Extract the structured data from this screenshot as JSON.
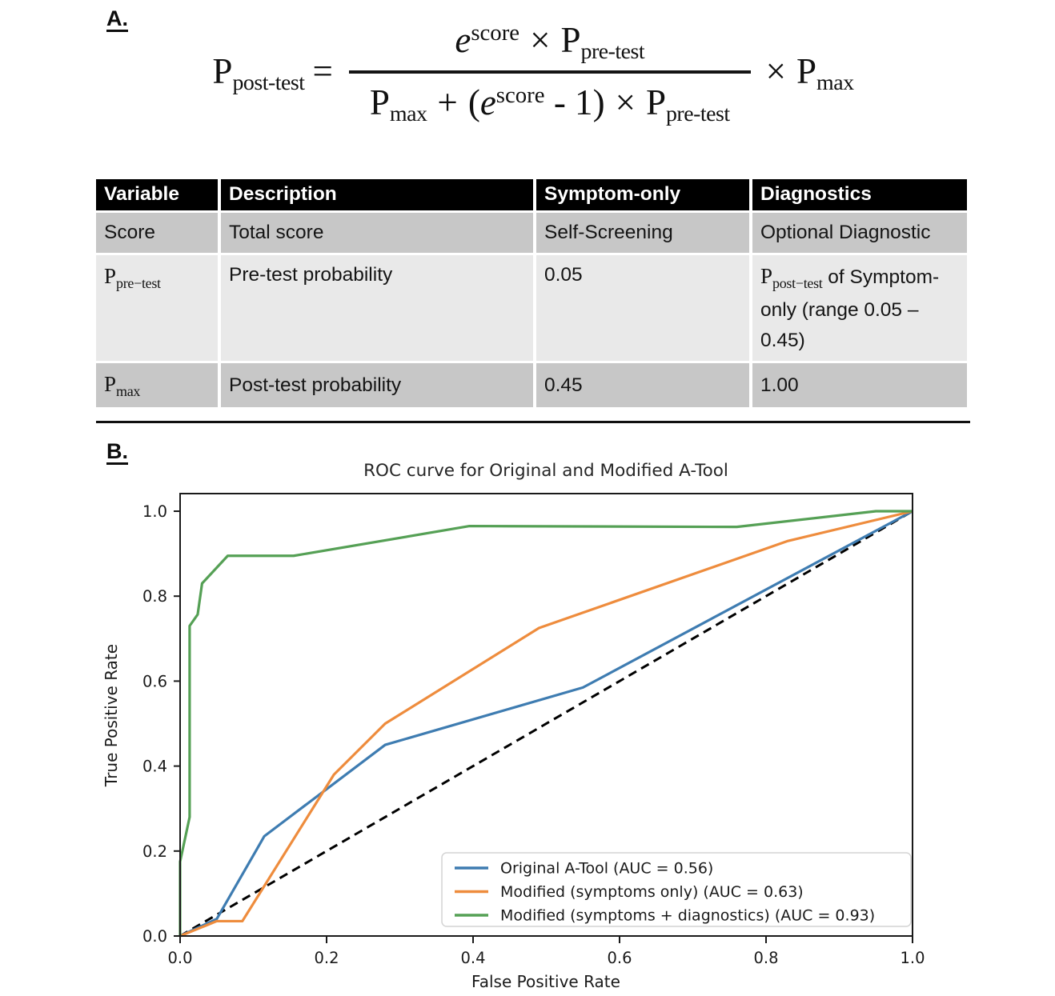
{
  "panel_a": {
    "label": "A.",
    "formula": {
      "lhs": {
        "base": "P",
        "sub": "post-test"
      },
      "equals": "=",
      "numerator": {
        "e": "e",
        "exp": "score",
        "times": "×",
        "p": "P",
        "p_sub": "pre-test"
      },
      "denominator": {
        "p1": "P",
        "p1_sub": "max",
        "plus": "+",
        "open": "(",
        "e": "e",
        "exp": "score",
        "minus_one": "- 1",
        "close": ")",
        "times": "×",
        "p2": "P",
        "p2_sub": "pre-test"
      },
      "rhs": {
        "times": "×",
        "p": "P",
        "p_sub": "max"
      }
    },
    "table": {
      "headers": [
        "Variable",
        "Description",
        "Symptom-only",
        "Diagnostics"
      ],
      "rows": [
        {
          "shade": "dark",
          "cells": [
            [
              {
                "t": "text",
                "v": "Score"
              }
            ],
            [
              {
                "t": "text",
                "v": "Total score"
              }
            ],
            [
              {
                "t": "text",
                "v": "Self-Screening"
              }
            ],
            [
              {
                "t": "text",
                "v": "Optional Diagnostic"
              }
            ]
          ]
        },
        {
          "shade": "light",
          "cells": [
            [
              {
                "t": "var",
                "base": "P",
                "sub": "pre−test"
              }
            ],
            [
              {
                "t": "text",
                "v": "Pre-test probability"
              }
            ],
            [
              {
                "t": "text",
                "v": "0.05"
              }
            ],
            [
              {
                "t": "var",
                "base": "P",
                "sub": "post−test"
              },
              {
                "t": "text",
                "v": " of Symptom-only (range 0.05 – 0.45)"
              }
            ]
          ]
        },
        {
          "shade": "dark",
          "cells": [
            [
              {
                "t": "var",
                "base": "P",
                "sub": "max"
              }
            ],
            [
              {
                "t": "text",
                "v": "Post-test probability"
              }
            ],
            [
              {
                "t": "text",
                "v": "0.45"
              }
            ],
            [
              {
                "t": "text",
                "v": "1.00"
              }
            ]
          ]
        }
      ]
    }
  },
  "panel_b": {
    "label": "B.",
    "chart_data": {
      "type": "line",
      "title": "ROC curve for Original and Modified A-Tool",
      "xlabel": "False Positive Rate",
      "ylabel": "True Positive Rate",
      "xlim": [
        0,
        1.0
      ],
      "ylim": [
        0,
        1.0
      ],
      "xticks": [
        0.0,
        0.2,
        0.4,
        0.6,
        0.8,
        1.0
      ],
      "yticks": [
        0.0,
        0.2,
        0.4,
        0.6,
        0.8,
        1.0
      ],
      "grid": false,
      "legend_position": "lower right",
      "series": [
        {
          "name": "Original A-Tool (AUC = 0.56)",
          "auc": 0.56,
          "color": "#3e7cb1",
          "points": [
            [
              0,
              0
            ],
            [
              0.05,
              0.04
            ],
            [
              0.105,
              0.205
            ],
            [
              0.115,
              0.235
            ],
            [
              0.28,
              0.45
            ],
            [
              0.55,
              0.585
            ],
            [
              1,
              1
            ]
          ]
        },
        {
          "name": "Modified (symptoms only) (AUC = 0.63)",
          "auc": 0.63,
          "color": "#ee8c3d",
          "points": [
            [
              0,
              0
            ],
            [
              0.05,
              0.035
            ],
            [
              0.085,
              0.035
            ],
            [
              0.21,
              0.38
            ],
            [
              0.28,
              0.5
            ],
            [
              0.49,
              0.725
            ],
            [
              0.83,
              0.93
            ],
            [
              1,
              1
            ]
          ]
        },
        {
          "name": "Modified (symptoms + diagnostics) (AUC = 0.93)",
          "auc": 0.93,
          "color": "#55a055",
          "points": [
            [
              0,
              0
            ],
            [
              0,
              0.175
            ],
            [
              0.013,
              0.28
            ],
            [
              0.013,
              0.73
            ],
            [
              0.024,
              0.757
            ],
            [
              0.03,
              0.83
            ],
            [
              0.065,
              0.895
            ],
            [
              0.155,
              0.895
            ],
            [
              0.395,
              0.965
            ],
            [
              0.76,
              0.963
            ],
            [
              0.95,
              1.0
            ],
            [
              1,
              1
            ]
          ]
        }
      ],
      "reference_line": {
        "style": "dashed",
        "color": "#000000",
        "points": [
          [
            0,
            0
          ],
          [
            1,
            1
          ]
        ]
      },
      "axis_color": "#1a1a1a"
    }
  }
}
